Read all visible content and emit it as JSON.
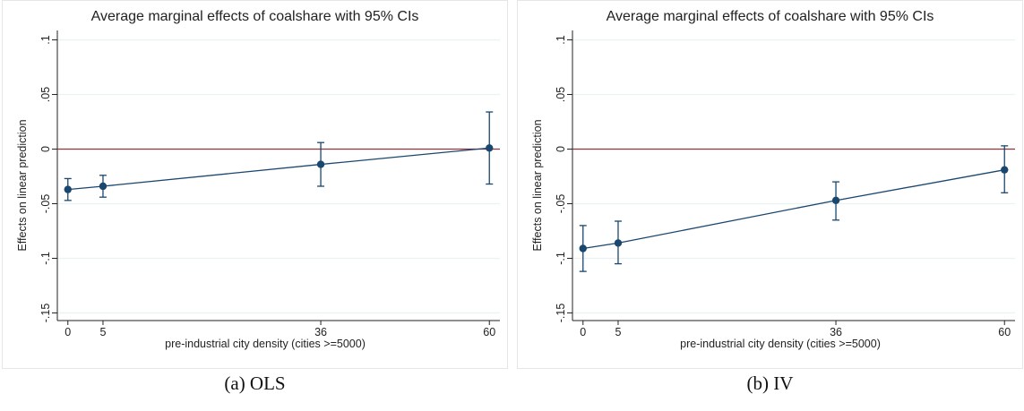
{
  "colors": {
    "outer_background": "#ffffff",
    "plot_background": "#ffffff",
    "frame": "#e6e6e6",
    "grid": "#eaf2f3",
    "axis": "#222222",
    "series": "#1a476f",
    "reference_line": "#90353b",
    "text": "#222222"
  },
  "captions": [
    "(a) OLS",
    "(b) IV"
  ],
  "chart_data": [
    {
      "type": "line",
      "title": "Average marginal effects of coalshare with 95% CIs",
      "xlabel": "pre-industrial city density (cities >=5000)",
      "ylabel": "Effects on linear prediction",
      "x_ticks": [
        0,
        5,
        36,
        60
      ],
      "x_tick_labels": [
        "0",
        "5",
        "36",
        "60"
      ],
      "y_ticks": [
        -0.15,
        -0.1,
        -0.05,
        0,
        0.05,
        0.1
      ],
      "y_tick_labels": [
        "-.15",
        "-.1",
        "-.05",
        "0",
        ".05",
        ".1"
      ],
      "xlim": [
        -1.5,
        61.5
      ],
      "ylim": [
        -0.157,
        0.107
      ],
      "grid": true,
      "reference_line_y": 0,
      "series": [
        {
          "x": [
            0,
            5,
            36,
            60
          ],
          "y": [
            -0.037,
            -0.034,
            -0.014,
            0.001
          ],
          "ci_low": [
            -0.047,
            -0.044,
            -0.034,
            -0.032
          ],
          "ci_high": [
            -0.027,
            -0.024,
            0.006,
            0.034
          ]
        }
      ]
    },
    {
      "type": "line",
      "title": "Average marginal effects of coalshare with 95% CIs",
      "xlabel": "pre-industrial city density (cities >=5000)",
      "ylabel": "Effects on linear prediction",
      "x_ticks": [
        0,
        5,
        36,
        60
      ],
      "x_tick_labels": [
        "0",
        "5",
        "36",
        "60"
      ],
      "y_ticks": [
        -0.15,
        -0.1,
        -0.05,
        0,
        0.05,
        0.1
      ],
      "y_tick_labels": [
        "-.15",
        "-.1",
        "-.05",
        "0",
        ".05",
        ".1"
      ],
      "xlim": [
        -1.5,
        61.5
      ],
      "ylim": [
        -0.157,
        0.107
      ],
      "grid": true,
      "reference_line_y": 0,
      "series": [
        {
          "x": [
            0,
            5,
            36,
            60
          ],
          "y": [
            -0.091,
            -0.086,
            -0.047,
            -0.019
          ],
          "ci_low": [
            -0.112,
            -0.105,
            -0.065,
            -0.04
          ],
          "ci_high": [
            -0.07,
            -0.066,
            -0.03,
            0.003
          ]
        }
      ]
    }
  ]
}
